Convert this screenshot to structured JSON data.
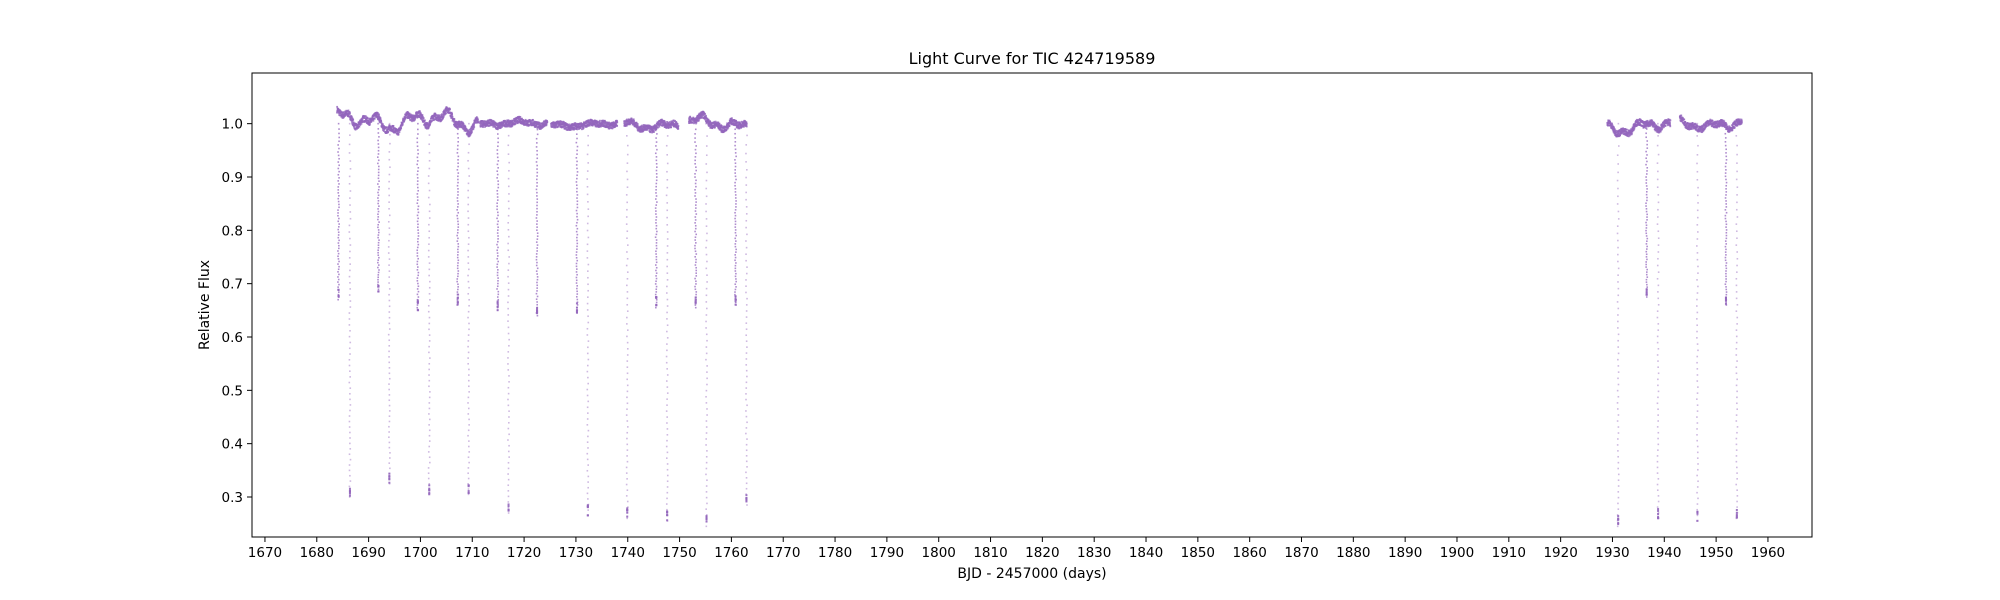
{
  "chart_data": {
    "type": "scatter",
    "title": "Light Curve for TIC 424719589",
    "xlabel": "BJD - 2457000 (days)",
    "ylabel": "Relative Flux",
    "xlim": [
      1667.5,
      1968.5
    ],
    "ylim": [
      0.225,
      1.095
    ],
    "xticks": [
      1670,
      1680,
      1690,
      1700,
      1710,
      1720,
      1730,
      1740,
      1750,
      1760,
      1770,
      1780,
      1790,
      1800,
      1810,
      1820,
      1830,
      1840,
      1850,
      1860,
      1870,
      1880,
      1890,
      1900,
      1910,
      1920,
      1930,
      1940,
      1950,
      1960
    ],
    "yticks": [
      0.3,
      0.4,
      0.5,
      0.6,
      0.7,
      0.8,
      0.9,
      1.0
    ],
    "grid": false,
    "point_color": "#9467bd",
    "segments": [
      {
        "x_start": 1683.9,
        "x_end": 1711.2,
        "level": 1.005,
        "amplitude": 0.022
      },
      {
        "x_start": 1711.5,
        "x_end": 1724.5,
        "level": 1.0,
        "amplitude": 0.006
      },
      {
        "x_start": 1725.2,
        "x_end": 1738.0,
        "level": 0.998,
        "amplitude": 0.005
      },
      {
        "x_start": 1739.3,
        "x_end": 1749.8,
        "level": 0.998,
        "amplitude": 0.01
      },
      {
        "x_start": 1751.8,
        "x_end": 1763.0,
        "level": 1.0,
        "amplitude": 0.015
      },
      {
        "x_start": 1929.0,
        "x_end": 1941.2,
        "level": 0.995,
        "amplitude": 0.015
      },
      {
        "x_start": 1943.0,
        "x_end": 1955.0,
        "level": 1.0,
        "amplitude": 0.012
      }
    ],
    "primary_eclipses": [
      {
        "x": 1684.2,
        "depth_min": 0.67
      },
      {
        "x": 1691.9,
        "depth_min": 0.685
      },
      {
        "x": 1699.5,
        "depth_min": 0.65
      },
      {
        "x": 1707.2,
        "depth_min": 0.66
      },
      {
        "x": 1714.9,
        "depth_min": 0.65
      },
      {
        "x": 1722.5,
        "depth_min": 0.64
      },
      {
        "x": 1730.2,
        "depth_min": 0.645
      },
      {
        "x": 1745.5,
        "depth_min": 0.655
      },
      {
        "x": 1753.1,
        "depth_min": 0.655
      },
      {
        "x": 1760.8,
        "depth_min": 0.66
      },
      {
        "x": 1936.6,
        "depth_min": 0.675
      },
      {
        "x": 1951.9,
        "depth_min": 0.66
      }
    ],
    "secondary_eclipses": [
      {
        "x": 1686.4,
        "depth_min": 0.3
      },
      {
        "x": 1694.0,
        "depth_min": 0.325
      },
      {
        "x": 1701.7,
        "depth_min": 0.305
      },
      {
        "x": 1709.3,
        "depth_min": 0.305
      },
      {
        "x": 1717.0,
        "depth_min": 0.27
      },
      {
        "x": 1732.3,
        "depth_min": 0.265
      },
      {
        "x": 1739.9,
        "depth_min": 0.26
      },
      {
        "x": 1747.6,
        "depth_min": 0.255
      },
      {
        "x": 1755.2,
        "depth_min": 0.245
      },
      {
        "x": 1762.9,
        "depth_min": 0.285
      },
      {
        "x": 1931.1,
        "depth_min": 0.245
      },
      {
        "x": 1938.8,
        "depth_min": 0.26
      },
      {
        "x": 1946.4,
        "depth_min": 0.255
      },
      {
        "x": 1954.0,
        "depth_min": 0.26
      }
    ]
  }
}
